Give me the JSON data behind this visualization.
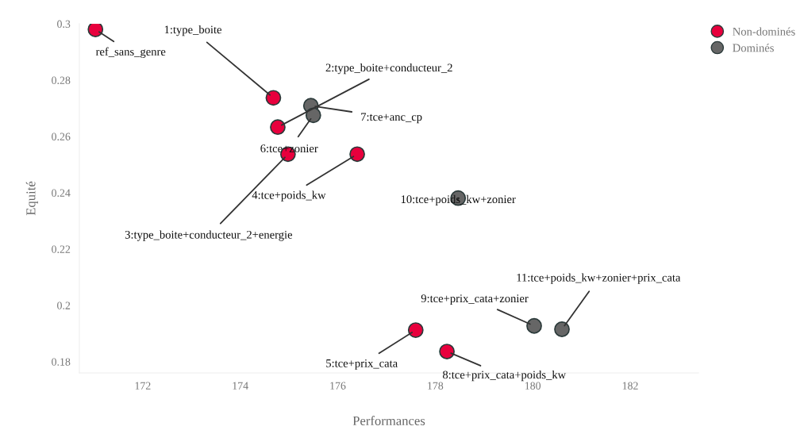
{
  "chart_data": {
    "type": "scatter",
    "xlabel": "Performances",
    "ylabel": "Equité",
    "xlim": [
      170.7,
      183.4
    ],
    "ylim": [
      0.176,
      0.3
    ],
    "xticks": [
      172,
      174,
      176,
      178,
      180,
      182
    ],
    "yticks": [
      0.18,
      0.2,
      0.22,
      0.24,
      0.26,
      0.28,
      0.3
    ],
    "legend": "top right",
    "marker": "circle",
    "grid": false,
    "series": [
      {
        "name": "Non-dominés",
        "color": "#e8003d",
        "x": [
          171.03,
          174.68,
          174.77,
          174.98,
          176.4,
          177.6,
          178.24
        ],
        "values": [
          0.298,
          0.2737,
          0.2633,
          0.2537,
          0.2537,
          0.1912,
          0.1836
        ]
      },
      {
        "name": "Dominés",
        "color": "#666666",
        "x": [
          175.45,
          175.5,
          178.47,
          180.03,
          180.6
        ],
        "values": [
          0.2709,
          0.2675,
          0.2381,
          0.1927,
          0.1915
        ]
      }
    ],
    "annotations": [
      {
        "text": "ref_sans_genre",
        "x": 171.03,
        "y": 0.298
      },
      {
        "text": "1:type_boite",
        "x": 174.68,
        "y": 0.2737
      },
      {
        "text": "2:type_boite+conducteur_2",
        "x": 174.77,
        "y": 0.2633
      },
      {
        "text": "7:tce+anc_cp",
        "x": 175.45,
        "y": 0.2709
      },
      {
        "text": "6:tce+zonier",
        "x": 175.5,
        "y": 0.2675
      },
      {
        "text": "3:type_boite+conducteur_2+energie",
        "x": 174.98,
        "y": 0.2537
      },
      {
        "text": "4:tce+poids_kw",
        "x": 176.4,
        "y": 0.2537
      },
      {
        "text": "10:tce+poids_kw+zonier",
        "x": 178.47,
        "y": 0.2381
      },
      {
        "text": "5:tce+prix_cata",
        "x": 177.6,
        "y": 0.1912
      },
      {
        "text": "8:tce+prix_cata+poids_kw",
        "x": 178.24,
        "y": 0.1836
      },
      {
        "text": "9:tce+prix_cata+zonier",
        "x": 180.03,
        "y": 0.1927
      },
      {
        "text": "11:tce+poids_kw+zonier+prix_cata",
        "x": 180.6,
        "y": 0.1915
      }
    ]
  }
}
